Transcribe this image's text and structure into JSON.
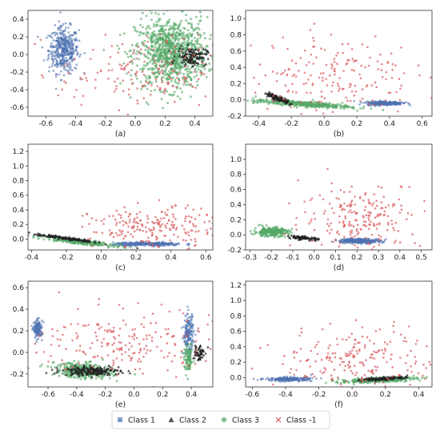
{
  "colors": {
    "class_1": "#4c72b0",
    "class_2": "#222222",
    "class_3": "#55a868",
    "class_neg1": "#d9585b"
  },
  "legend": {
    "entries": [
      {
        "key": "class_1",
        "label": "Class 1",
        "marker": "square"
      },
      {
        "key": "class_2",
        "label": "Class 2",
        "marker": "triangle"
      },
      {
        "key": "class_3",
        "label": "Class 3",
        "marker": "circle"
      },
      {
        "key": "class_neg1",
        "label": "Class -1",
        "marker": "x"
      }
    ]
  },
  "chart_data": [
    {
      "type": "scatter",
      "label": "(a)",
      "xlim": [
        -0.72,
        0.52
      ],
      "ylim": [
        -0.7,
        0.5
      ],
      "xticks": [
        -0.6,
        -0.4,
        -0.2,
        0.0,
        0.2,
        0.4
      ],
      "yticks": [
        -0.6,
        -0.4,
        -0.2,
        0.0,
        0.2,
        0.4
      ],
      "clusters": [
        {
          "class": "class_1",
          "n": 420,
          "cx": -0.48,
          "cy": 0.05,
          "sx": 0.05,
          "sy": 0.13,
          "rot": 0
        },
        {
          "class": "class_3",
          "n": 950,
          "cx": 0.24,
          "cy": 0.02,
          "sx": 0.12,
          "sy": 0.2,
          "rot": 0
        },
        {
          "class": "class_2",
          "n": 130,
          "cx": 0.38,
          "cy": -0.02,
          "sx": 0.05,
          "sy": 0.05,
          "rot": 0
        },
        {
          "class": "class_neg1",
          "n": 180,
          "cx": 0.05,
          "cy": -0.2,
          "sx": 0.28,
          "sy": 0.2,
          "rot": 0
        }
      ]
    },
    {
      "type": "scatter",
      "label": "(b)",
      "xlim": [
        -0.48,
        0.66
      ],
      "ylim": [
        -0.2,
        1.1
      ],
      "xticks": [
        -0.4,
        -0.2,
        0.0,
        0.2,
        0.4,
        0.6
      ],
      "yticks": [
        -0.2,
        0.0,
        0.2,
        0.4,
        0.6,
        0.8,
        1.0
      ],
      "clusters": [
        {
          "class": "class_1",
          "n": 300,
          "cx": 0.37,
          "cy": -0.04,
          "sx": 0.055,
          "sy": 0.012,
          "rot": 0
        },
        {
          "class": "class_3",
          "n": 360,
          "cx": -0.13,
          "cy": -0.05,
          "sx": 0.15,
          "sy": 0.016,
          "rot": -0.12
        },
        {
          "class": "class_2",
          "n": 120,
          "cx": -0.28,
          "cy": 0.02,
          "sx": 0.045,
          "sy": 0.012,
          "rot": -0.7
        },
        {
          "class": "class_neg1",
          "n": 190,
          "cx": 0.05,
          "cy": 0.32,
          "sx": 0.25,
          "sy": 0.25,
          "rot": 0
        }
      ]
    },
    {
      "type": "scatter",
      "label": "(c)",
      "xlim": [
        -0.42,
        0.64
      ],
      "ylim": [
        -0.15,
        1.3
      ],
      "xticks": [
        -0.4,
        -0.2,
        0.0,
        0.2,
        0.4,
        0.6
      ],
      "yticks": [
        0.0,
        0.2,
        0.4,
        0.6,
        0.8,
        1.0,
        1.2
      ],
      "clusters": [
        {
          "class": "class_1",
          "n": 320,
          "cx": 0.27,
          "cy": -0.07,
          "sx": 0.1,
          "sy": 0.012,
          "rot": 0
        },
        {
          "class": "class_3",
          "n": 280,
          "cx": -0.12,
          "cy": -0.04,
          "sx": 0.1,
          "sy": 0.014,
          "rot": -0.28
        },
        {
          "class": "class_2",
          "n": 160,
          "cx": -0.2,
          "cy": 0.01,
          "sx": 0.1,
          "sy": 0.008,
          "rot": -0.3
        },
        {
          "class": "class_neg1",
          "n": 220,
          "cx": 0.3,
          "cy": 0.15,
          "sx": 0.18,
          "sy": 0.14,
          "rot": 0
        }
      ]
    },
    {
      "type": "scatter",
      "label": "(d)",
      "xlim": [
        -0.32,
        0.55
      ],
      "ylim": [
        -0.2,
        1.2
      ],
      "xticks": [
        -0.3,
        -0.2,
        -0.1,
        0.0,
        0.1,
        0.2,
        0.3,
        0.4,
        0.5
      ],
      "yticks": [
        -0.2,
        0.0,
        0.2,
        0.4,
        0.6,
        0.8,
        1.0
      ],
      "clusters": [
        {
          "class": "class_1",
          "n": 300,
          "cx": 0.21,
          "cy": -0.08,
          "sx": 0.05,
          "sy": 0.015,
          "rot": 0
        },
        {
          "class": "class_3",
          "n": 240,
          "cx": -0.2,
          "cy": 0.04,
          "sx": 0.04,
          "sy": 0.03,
          "rot": 0
        },
        {
          "class": "class_2",
          "n": 90,
          "cx": -0.05,
          "cy": -0.04,
          "sx": 0.035,
          "sy": 0.01,
          "rot": -0.3
        },
        {
          "class": "class_neg1",
          "n": 210,
          "cx": 0.22,
          "cy": 0.25,
          "sx": 0.14,
          "sy": 0.22,
          "rot": 0
        }
      ]
    },
    {
      "type": "scatter",
      "label": "(e)",
      "xlim": [
        -0.74,
        0.55
      ],
      "ylim": [
        -0.32,
        0.66
      ],
      "xticks": [
        -0.6,
        -0.4,
        -0.2,
        0.0,
        0.2,
        0.4
      ],
      "yticks": [
        -0.2,
        0.0,
        0.2,
        0.4,
        0.6
      ],
      "clusters": [
        {
          "class": "class_1",
          "n": 140,
          "cx": -0.67,
          "cy": 0.21,
          "sx": 0.015,
          "sy": 0.04,
          "rot": 0
        },
        {
          "class": "class_1",
          "n": 180,
          "cx": 0.38,
          "cy": 0.17,
          "sx": 0.018,
          "sy": 0.09,
          "rot": 0
        },
        {
          "class": "class_3",
          "n": 360,
          "cx": -0.35,
          "cy": -0.17,
          "sx": 0.1,
          "sy": 0.035,
          "rot": -0.1
        },
        {
          "class": "class_3",
          "n": 90,
          "cx": 0.38,
          "cy": -0.07,
          "sx": 0.015,
          "sy": 0.06,
          "rot": 0
        },
        {
          "class": "class_2",
          "n": 200,
          "cx": -0.3,
          "cy": -0.17,
          "sx": 0.1,
          "sy": 0.02,
          "rot": 0
        },
        {
          "class": "class_2",
          "n": 60,
          "cx": 0.45,
          "cy": 0.0,
          "sx": 0.02,
          "sy": 0.04,
          "rot": 0
        },
        {
          "class": "class_neg1",
          "n": 210,
          "cx": -0.05,
          "cy": 0.08,
          "sx": 0.3,
          "sy": 0.16,
          "rot": 0
        }
      ]
    },
    {
      "type": "scatter",
      "label": "(f)",
      "xlim": [
        -0.64,
        0.48
      ],
      "ylim": [
        -0.12,
        1.25
      ],
      "xticks": [
        -0.6,
        -0.4,
        -0.2,
        0.0,
        0.2,
        0.4
      ],
      "yticks": [
        0.0,
        0.2,
        0.4,
        0.6,
        0.8,
        1.0,
        1.2
      ],
      "clusters": [
        {
          "class": "class_1",
          "n": 220,
          "cx": -0.38,
          "cy": -0.02,
          "sx": 0.07,
          "sy": 0.013,
          "rot": 0
        },
        {
          "class": "class_3",
          "n": 320,
          "cx": 0.15,
          "cy": -0.03,
          "sx": 0.11,
          "sy": 0.015,
          "rot": 0.1
        },
        {
          "class": "class_2",
          "n": 120,
          "cx": 0.2,
          "cy": -0.01,
          "sx": 0.07,
          "sy": 0.01,
          "rot": 0.12
        },
        {
          "class": "class_neg1",
          "n": 210,
          "cx": 0.05,
          "cy": 0.25,
          "sx": 0.24,
          "sy": 0.2,
          "rot": 0
        }
      ]
    }
  ]
}
